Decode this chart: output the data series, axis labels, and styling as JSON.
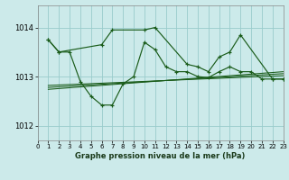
{
  "background_color": "#cceaea",
  "grid_color": "#99cccc",
  "line_color": "#1a5c1a",
  "title": "Graphe pression niveau de la mer (hPa)",
  "xlim": [
    0,
    23
  ],
  "ylim": [
    1011.7,
    1014.45
  ],
  "yticks": [
    1012,
    1013,
    1014
  ],
  "xticks": [
    0,
    1,
    2,
    3,
    4,
    5,
    6,
    7,
    8,
    9,
    10,
    11,
    12,
    13,
    14,
    15,
    16,
    17,
    18,
    19,
    20,
    21,
    22,
    23
  ],
  "line1_x": [
    1,
    2,
    3,
    4,
    5,
    6,
    7,
    8,
    9,
    10,
    11,
    12,
    13,
    14,
    15,
    16,
    17,
    18,
    19,
    20,
    21,
    22,
    23
  ],
  "line1_y": [
    1013.75,
    1013.5,
    1013.5,
    1012.9,
    1012.6,
    1012.42,
    1012.42,
    1012.85,
    1013.0,
    1013.7,
    1013.55,
    1013.2,
    1013.1,
    1013.1,
    1013.0,
    1012.98,
    1013.1,
    1013.2,
    1013.1,
    1013.1,
    1012.95,
    1012.95,
    1012.95
  ],
  "line2_x": [
    1,
    2,
    6,
    7,
    10,
    11,
    14,
    15,
    16,
    17,
    18,
    19,
    22,
    23
  ],
  "line2_y": [
    1013.75,
    1013.5,
    1013.65,
    1013.95,
    1013.95,
    1014.0,
    1013.25,
    1013.2,
    1013.1,
    1013.4,
    1013.5,
    1013.85,
    1012.95,
    1012.95
  ],
  "trend_lines": [
    [
      [
        1,
        23
      ],
      [
        1012.82,
        1013.02
      ]
    ],
    [
      [
        1,
        23
      ],
      [
        1012.78,
        1013.06
      ]
    ],
    [
      [
        1,
        23
      ],
      [
        1012.74,
        1013.1
      ]
    ]
  ]
}
